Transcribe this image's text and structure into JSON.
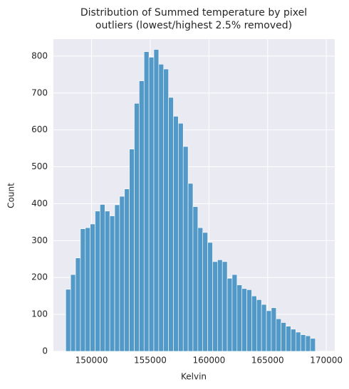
{
  "chart_data": {
    "type": "histogram",
    "title": [
      "Distribution of Summed temperature by pixel",
      "outliers (lowest/highest 2.5% removed)"
    ],
    "x_label": "Kelvin",
    "y_label": "Count",
    "bins": [
      147800,
      148217,
      148634,
      149051,
      149468,
      149885,
      150302,
      150719,
      151136,
      151553,
      151970,
      152387,
      152804,
      153221,
      153638,
      154055,
      154472,
      154889,
      155306,
      155723,
      156140,
      156557,
      156974,
      157391,
      157808,
      158225,
      158642,
      159059,
      159476,
      159893,
      160310,
      160727,
      161144,
      161561,
      161978,
      162395,
      162812,
      163229,
      163646,
      164063,
      164480,
      164897,
      165314,
      165731,
      166148,
      166565,
      166982,
      167399,
      167816,
      168233,
      168650,
      169067
    ],
    "values": [
      168,
      208,
      253,
      332,
      335,
      345,
      380,
      398,
      380,
      367,
      397,
      420,
      440,
      548,
      672,
      733,
      812,
      797,
      818,
      778,
      765,
      688,
      637,
      618,
      555,
      455,
      392,
      335,
      322,
      295,
      243,
      248,
      243,
      198,
      208,
      180,
      170,
      167,
      150,
      140,
      127,
      110,
      118,
      88,
      78,
      68,
      60,
      52,
      45,
      42,
      35
    ],
    "color": "#5399c8",
    "xlim": [
      146750,
      170720
    ],
    "xticks": [
      150000,
      155000,
      160000,
      165000,
      170000
    ],
    "ylim": [
      0,
      846
    ],
    "yticks": [
      0,
      100,
      200,
      300,
      400,
      500,
      600,
      700,
      800
    ],
    "grid": true
  }
}
